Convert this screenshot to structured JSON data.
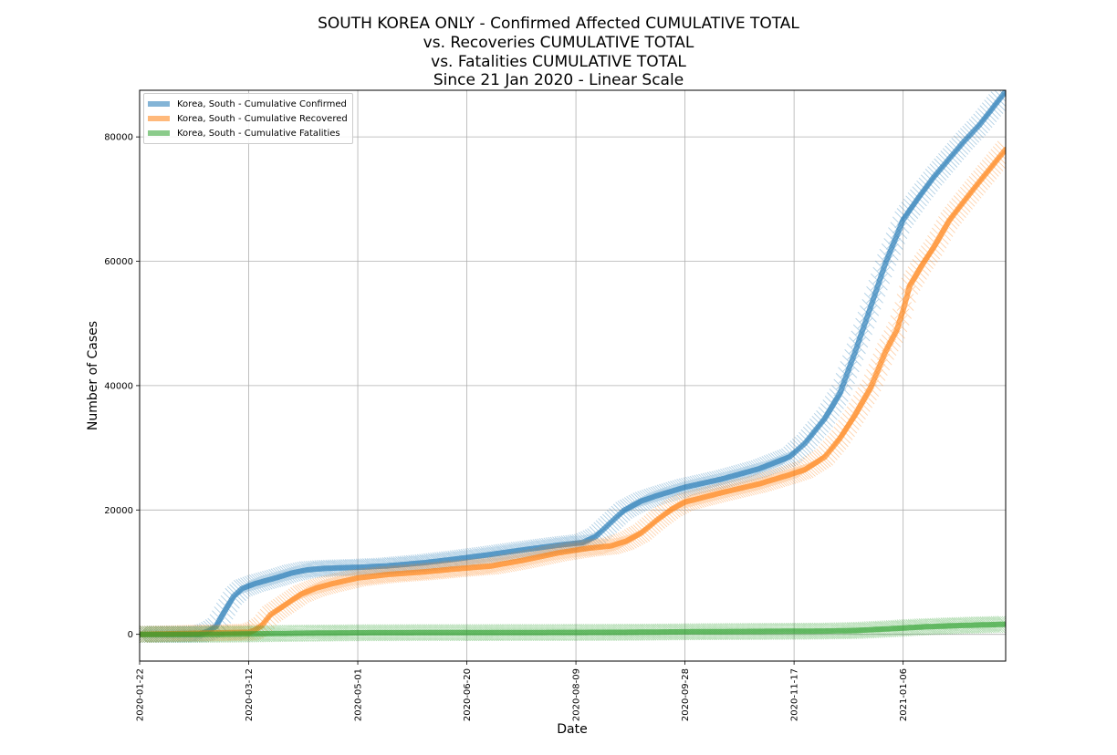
{
  "chart_data": {
    "type": "line",
    "title_lines": [
      "SOUTH KOREA ONLY - Confirmed Affected CUMULATIVE TOTAL",
      "vs. Recoveries CUMULATIVE TOTAL",
      "vs. Fatalities CUMULATIVE TOTAL",
      "Since 21 Jan 2020 - Linear Scale"
    ],
    "xlabel": "Date",
    "ylabel": "Number of Cases",
    "x_range": [
      "2020-01-22",
      "2021-02-22"
    ],
    "ylim": [
      -4300,
      87500
    ],
    "x_ticks": [
      "2020-01-22",
      "2020-03-12",
      "2020-05-01",
      "2020-06-20",
      "2020-08-09",
      "2020-09-28",
      "2020-11-17",
      "2021-01-06"
    ],
    "y_ticks": [
      0,
      20000,
      40000,
      60000,
      80000
    ],
    "grid": true,
    "legend_position": "upper-left",
    "series": [
      {
        "name": "Korea, South - Cumulative Confirmed",
        "color": "#1f77b4",
        "points": [
          [
            "2020-01-22",
            1
          ],
          [
            "2020-02-18",
            31
          ],
          [
            "2020-02-22",
            433
          ],
          [
            "2020-02-26",
            1261
          ],
          [
            "2020-03-01",
            3736
          ],
          [
            "2020-03-05",
            6088
          ],
          [
            "2020-03-09",
            7382
          ],
          [
            "2020-03-15",
            8162
          ],
          [
            "2020-03-20",
            8652
          ],
          [
            "2020-03-25",
            9137
          ],
          [
            "2020-04-01",
            9887
          ],
          [
            "2020-04-08",
            10384
          ],
          [
            "2020-04-15",
            10591
          ],
          [
            "2020-04-22",
            10694
          ],
          [
            "2020-05-01",
            10774
          ],
          [
            "2020-05-15",
            11018
          ],
          [
            "2020-06-01",
            11541
          ],
          [
            "2020-06-15",
            12121
          ],
          [
            "2020-07-01",
            12850
          ],
          [
            "2020-07-15",
            13551
          ],
          [
            "2020-08-01",
            14336
          ],
          [
            "2020-08-12",
            14770
          ],
          [
            "2020-08-18",
            15700
          ],
          [
            "2020-08-24",
            17665
          ],
          [
            "2020-08-31",
            19947
          ],
          [
            "2020-09-08",
            21432
          ],
          [
            "2020-09-15",
            22285
          ],
          [
            "2020-09-28",
            23661
          ],
          [
            "2020-10-15",
            24988
          ],
          [
            "2020-11-01",
            26635
          ],
          [
            "2020-11-15",
            28546
          ],
          [
            "2020-11-22",
            30733
          ],
          [
            "2020-12-01",
            34652
          ],
          [
            "2020-12-08",
            38755
          ],
          [
            "2020-12-15",
            45442
          ],
          [
            "2020-12-22",
            52550
          ],
          [
            "2020-12-29",
            59773
          ],
          [
            "2021-01-06",
            66686
          ],
          [
            "2021-01-13",
            70212
          ],
          [
            "2021-01-20",
            73518
          ],
          [
            "2021-01-27",
            76429
          ],
          [
            "2021-02-03",
            79311
          ],
          [
            "2021-02-10",
            81930
          ],
          [
            "2021-02-22",
            87324
          ]
        ]
      },
      {
        "name": "Korea, South - Cumulative Recovered",
        "color": "#ff7f0e",
        "points": [
          [
            "2020-01-22",
            0
          ],
          [
            "2020-03-12",
            333
          ],
          [
            "2020-03-15",
            714
          ],
          [
            "2020-03-18",
            1401
          ],
          [
            "2020-03-22",
            3166
          ],
          [
            "2020-03-29",
            4811
          ],
          [
            "2020-04-05",
            6463
          ],
          [
            "2020-04-12",
            7447
          ],
          [
            "2020-04-19",
            8114
          ],
          [
            "2020-05-01",
            9072
          ],
          [
            "2020-05-15",
            9632
          ],
          [
            "2020-06-01",
            10066
          ],
          [
            "2020-06-15",
            10531
          ],
          [
            "2020-07-01",
            10984
          ],
          [
            "2020-07-15",
            11858
          ],
          [
            "2020-08-01",
            13106
          ],
          [
            "2020-08-15",
            13863
          ],
          [
            "2020-08-25",
            14219
          ],
          [
            "2020-09-01",
            14990
          ],
          [
            "2020-09-08",
            16299
          ],
          [
            "2020-09-15",
            18341
          ],
          [
            "2020-09-22",
            20158
          ],
          [
            "2020-09-28",
            21266
          ],
          [
            "2020-10-15",
            22800
          ],
          [
            "2020-11-01",
            24195
          ],
          [
            "2020-11-15",
            25666
          ],
          [
            "2020-11-22",
            26500
          ],
          [
            "2020-12-01",
            28500
          ],
          [
            "2020-12-08",
            31500
          ],
          [
            "2020-12-15",
            35300
          ],
          [
            "2020-12-22",
            39600
          ],
          [
            "2020-12-29",
            45500
          ],
          [
            "2021-01-03",
            48900
          ],
          [
            "2021-01-06",
            52100
          ],
          [
            "2021-01-09",
            56000
          ],
          [
            "2021-01-15",
            59600
          ],
          [
            "2021-01-20",
            62200
          ],
          [
            "2021-01-27",
            66500
          ],
          [
            "2021-02-03",
            69700
          ],
          [
            "2021-02-10",
            72800
          ],
          [
            "2021-02-22",
            78000
          ]
        ]
      },
      {
        "name": "Korea, South - Cumulative Fatalities",
        "color": "#2ca02c",
        "points": [
          [
            "2020-01-22",
            0
          ],
          [
            "2020-02-20",
            1
          ],
          [
            "2020-03-01",
            20
          ],
          [
            "2020-03-15",
            75
          ],
          [
            "2020-04-01",
            165
          ],
          [
            "2020-05-01",
            250
          ],
          [
            "2020-06-01",
            272
          ],
          [
            "2020-07-01",
            282
          ],
          [
            "2020-08-01",
            301
          ],
          [
            "2020-09-01",
            326
          ],
          [
            "2020-10-01",
            415
          ],
          [
            "2020-11-01",
            468
          ],
          [
            "2020-12-01",
            526
          ],
          [
            "2020-12-15",
            612
          ],
          [
            "2021-01-01",
            917
          ],
          [
            "2021-01-15",
            1195
          ],
          [
            "2021-02-01",
            1420
          ],
          [
            "2021-02-22",
            1620
          ]
        ]
      }
    ]
  }
}
